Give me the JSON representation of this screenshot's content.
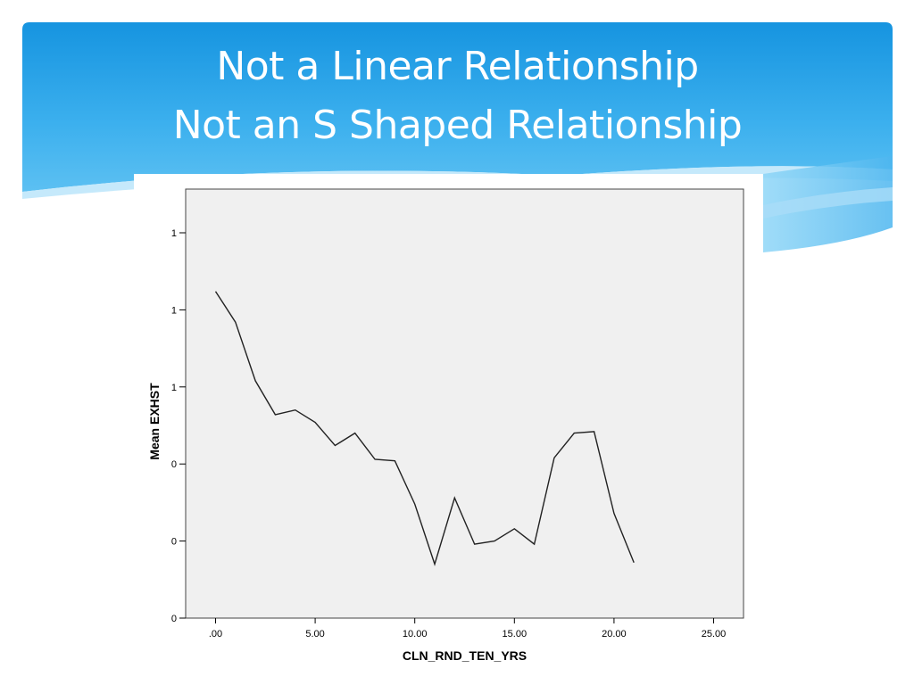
{
  "slide": {
    "title_line1": "Not a Linear Relationship",
    "title_line2": "Not an S Shaped Relationship",
    "banner_color": "#1a9de6",
    "banner_light": "#6cc6f3"
  },
  "chart_data": {
    "type": "line",
    "title": "",
    "xlabel": "CLN_RND_TEN_YRS",
    "ylabel": "Mean EXHST",
    "xlim": [
      -1.5,
      26.5
    ],
    "ylim": [
      0,
      1.25
    ],
    "x_ticks": [
      {
        "value": 0,
        "label": ".00"
      },
      {
        "value": 5,
        "label": "5.00"
      },
      {
        "value": 10,
        "label": "10.00"
      },
      {
        "value": 15,
        "label": "15.00"
      },
      {
        "value": 20,
        "label": "20.00"
      },
      {
        "value": 25,
        "label": "25.00"
      }
    ],
    "y_ticks": [
      {
        "value": 0,
        "label": "0"
      },
      {
        "value": 0.25,
        "label": "0"
      },
      {
        "value": 0.5,
        "label": "0"
      },
      {
        "value": 0.75,
        "label": "1"
      },
      {
        "value": 1.0,
        "label": "1"
      },
      {
        "value": 1.25,
        "label": "1"
      }
    ],
    "grid": false,
    "background": "#f0f0f0",
    "series": [
      {
        "x": [
          0,
          1,
          2,
          3,
          4,
          5,
          6,
          7,
          8,
          9,
          10,
          11,
          12,
          13,
          14,
          15,
          16,
          17,
          18,
          19,
          20,
          21
        ],
        "y": [
          1.06,
          0.96,
          0.77,
          0.66,
          0.675,
          0.635,
          0.56,
          0.6,
          0.515,
          0.51,
          0.37,
          0.175,
          0.39,
          0.24,
          0.25,
          0.29,
          0.24,
          0.52,
          0.6,
          0.605,
          0.34,
          0.18
        ]
      }
    ]
  }
}
